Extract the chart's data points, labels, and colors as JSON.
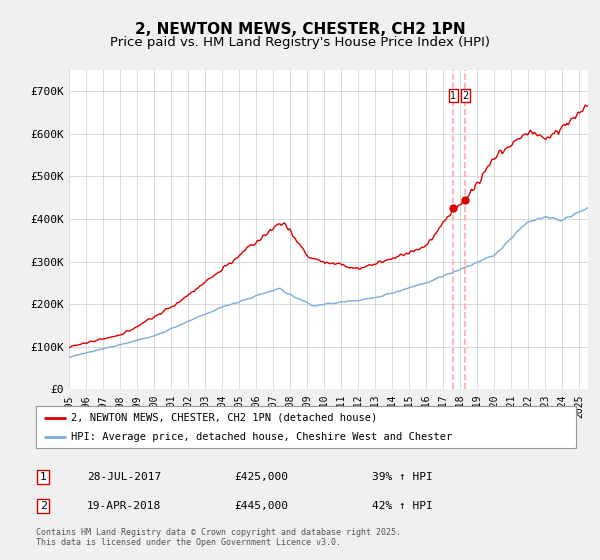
{
  "title": "2, NEWTON MEWS, CHESTER, CH2 1PN",
  "subtitle": "Price paid vs. HM Land Registry's House Price Index (HPI)",
  "ylim": [
    0,
    750000
  ],
  "yticks": [
    0,
    100000,
    200000,
    300000,
    400000,
    500000,
    600000,
    700000
  ],
  "ytick_labels": [
    "£0",
    "£100K",
    "£200K",
    "£300K",
    "£400K",
    "£500K",
    "£600K",
    "£700K"
  ],
  "xlim_start": 1995.0,
  "xlim_end": 2025.5,
  "xtick_years": [
    1995,
    1996,
    1997,
    1998,
    1999,
    2000,
    2001,
    2002,
    2003,
    2004,
    2005,
    2006,
    2007,
    2008,
    2009,
    2010,
    2011,
    2012,
    2013,
    2014,
    2015,
    2016,
    2017,
    2018,
    2019,
    2020,
    2021,
    2022,
    2023,
    2024,
    2025
  ],
  "sale1_x": 2017.57,
  "sale1_y": 425000,
  "sale1_label": "1",
  "sale2_x": 2018.29,
  "sale2_y": 445000,
  "sale2_label": "2",
  "line1_color": "#dd0000",
  "line2_color": "#7aaddc",
  "legend1_label": "2, NEWTON MEWS, CHESTER, CH2 1PN (detached house)",
  "legend2_label": "HPI: Average price, detached house, Cheshire West and Chester",
  "annotation1_date": "28-JUL-2017",
  "annotation1_price": "£425,000",
  "annotation1_hpi": "39% ↑ HPI",
  "annotation2_date": "19-APR-2018",
  "annotation2_price": "£445,000",
  "annotation2_hpi": "42% ↑ HPI",
  "footer": "Contains HM Land Registry data © Crown copyright and database right 2025.\nThis data is licensed under the Open Government Licence v3.0.",
  "background_color": "#f0f0f0",
  "plot_bg_color": "#ffffff",
  "grid_color": "#cccccc",
  "title_fontsize": 11,
  "subtitle_fontsize": 9.5
}
